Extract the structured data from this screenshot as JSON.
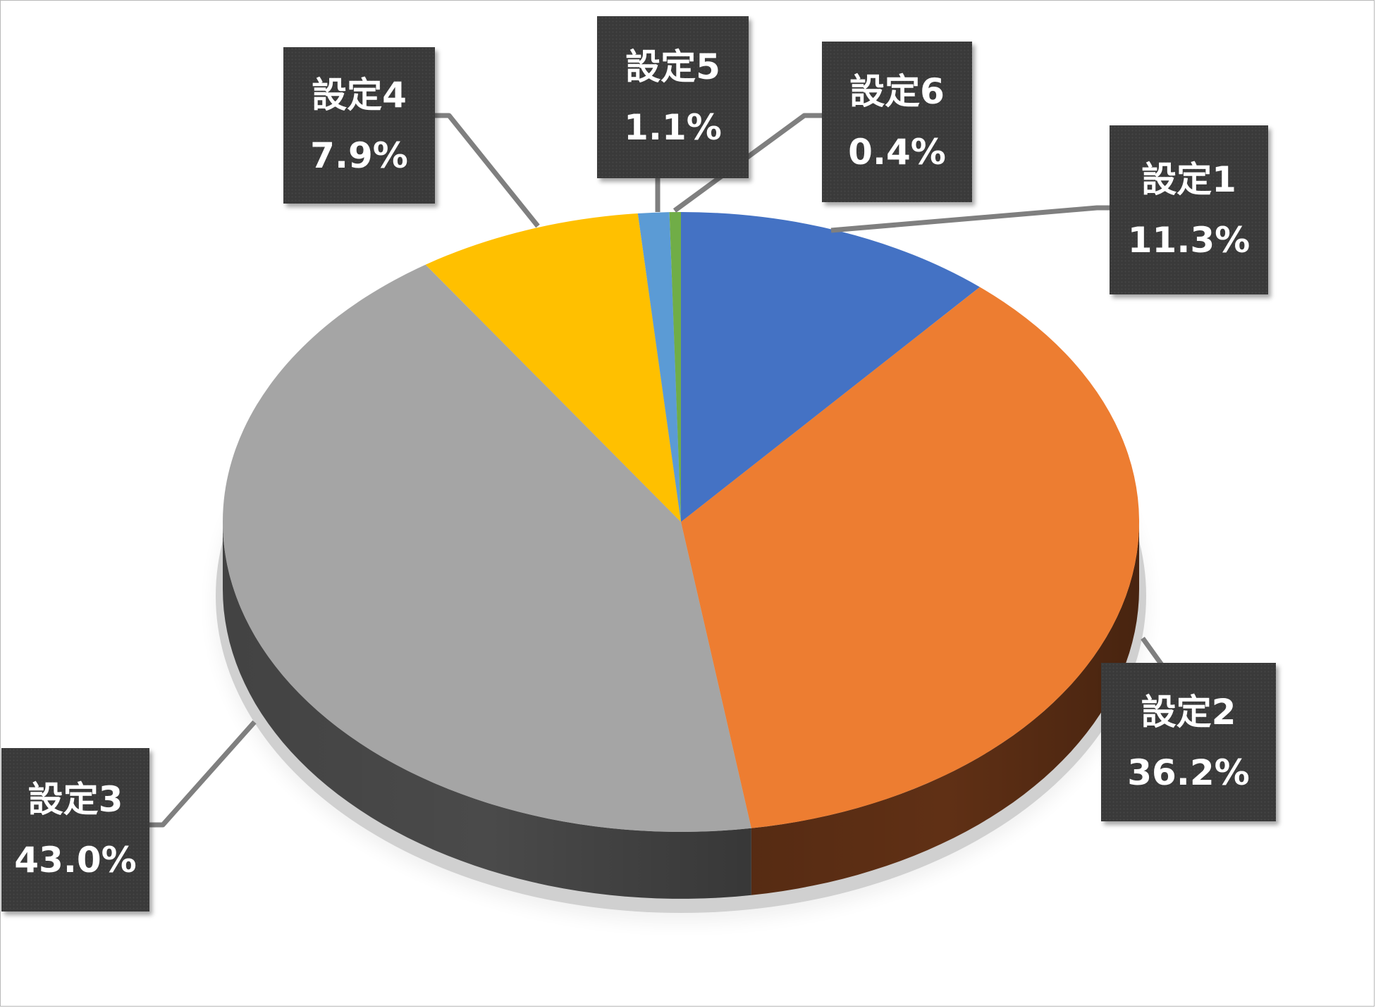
{
  "chart_data": {
    "type": "pie",
    "style": "3d",
    "title": "",
    "categories": [
      "設定1",
      "設定2",
      "設定3",
      "設定4",
      "設定5",
      "設定6"
    ],
    "values": [
      11.3,
      36.2,
      43.0,
      7.9,
      1.1,
      0.4
    ],
    "series": [
      {
        "values": [
          11.3,
          36.2,
          43.0,
          7.9,
          1.1,
          0.4
        ]
      }
    ],
    "data_labels": [
      {
        "category": "設定1",
        "percent": "11.3%"
      },
      {
        "category": "設定2",
        "percent": "36.2%"
      },
      {
        "category": "設定3",
        "percent": "43.0%"
      },
      {
        "category": "設定4",
        "percent": "7.9%"
      },
      {
        "category": "設定5",
        "percent": "1.1%"
      },
      {
        "category": "設定6",
        "percent": "0.4%"
      }
    ],
    "colors": [
      "#4472C4",
      "#ED7D31",
      "#A5A5A5",
      "#FFC000",
      "#5B9BD5",
      "#70AD47"
    ],
    "side_colors": [
      "#2E4F8A",
      "#603015",
      "#4A4A4A",
      "#8A6800",
      "#3A6A96",
      "#3E6428"
    ],
    "legend": "none",
    "start_angle": "top",
    "direction": "clockwise"
  }
}
